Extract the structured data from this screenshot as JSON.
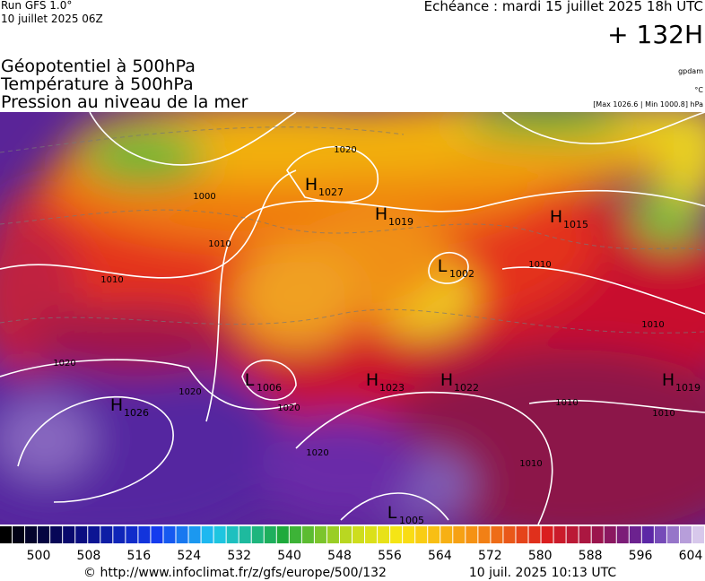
{
  "header": {
    "run": "Run GFS 1.0°",
    "run_date": "10 juillet 2025 06Z",
    "echeance": "Echéance : mardi 15 juillet 2025 18h UTC",
    "lead": "+ 132H"
  },
  "legend": {
    "lines": [
      "Géopotentiel à 500hPa",
      "Température à 500hPa",
      "Pression au niveau de la mer"
    ],
    "unit_geo": "gpdam",
    "unit_temp": "°C",
    "range": "[Max 1026.6 | Min 1000.8] hPa"
  },
  "map": {
    "centers": [
      {
        "letter": "H",
        "value": "1027"
      },
      {
        "letter": "H",
        "value": "1019"
      },
      {
        "letter": "H",
        "value": "1015"
      },
      {
        "letter": "L",
        "value": "1002"
      },
      {
        "letter": "L",
        "value": "1006"
      },
      {
        "letter": "H",
        "value": "1023"
      },
      {
        "letter": "H",
        "value": "1022"
      },
      {
        "letter": "H",
        "value": "1019"
      },
      {
        "letter": "H",
        "value": "1026"
      },
      {
        "letter": "L",
        "value": "1005"
      }
    ],
    "isobar_labels": [
      "1000",
      "1010",
      "1010",
      "1020",
      "1020",
      "1020",
      "1020",
      "1020",
      "1010",
      "1010",
      "1010",
      "1010",
      "1010"
    ]
  },
  "colorbar": {
    "labels": [
      500,
      508,
      516,
      524,
      532,
      540,
      548,
      556,
      564,
      572,
      580,
      588,
      596,
      604
    ]
  },
  "footer": {
    "source": "© http://www.infoclimat.fr/z/gfs/europe/500/132",
    "generated": "10 juil. 2025 10:13 UTC"
  }
}
